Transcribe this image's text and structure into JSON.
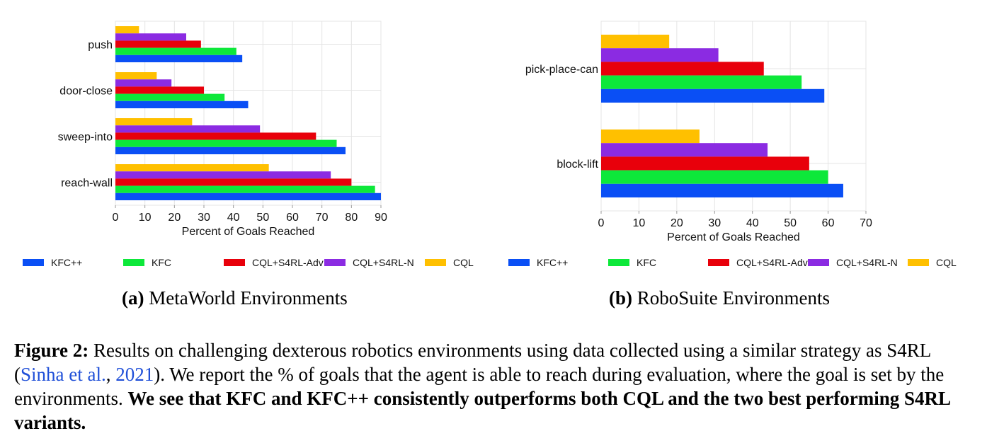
{
  "figure": {
    "subcaption_a": {
      "label": "(a)",
      "text": "MetaWorld Environments"
    },
    "subcaption_b": {
      "label": "(b)",
      "text": "RoboSuite Environments"
    },
    "caption": {
      "label": "Figure 2:",
      "text_1": "Results on challenging dexterous robotics environments using data collected using a similar strategy as S4RL (",
      "cite_author": "Sinha et al.",
      "cite_sep": ", ",
      "cite_year": "2021",
      "text_2": "). We report the % of goals that the agent is able to reach during evaluation, where the goal is set by the environments. ",
      "bold_text": "We see that KFC and KFC++ consistently outperforms both CQL and the two best performing S4RL variants."
    }
  },
  "chart_data": [
    {
      "type": "bar",
      "orientation": "horizontal",
      "categories": [
        "push",
        "door-close",
        "sweep-into",
        "reach-wall"
      ],
      "series": [
        {
          "name": "KFC++",
          "color": "#0a4ff5",
          "values": [
            43,
            45,
            78,
            90
          ]
        },
        {
          "name": "KFC",
          "color": "#0de83a",
          "values": [
            41,
            37,
            75,
            88
          ]
        },
        {
          "name": "CQL+S4RL-Adv",
          "color": "#e8000b",
          "values": [
            29,
            30,
            68,
            80
          ]
        },
        {
          "name": "CQL+S4RL-N",
          "color": "#8b2be2",
          "values": [
            24,
            19,
            49,
            73
          ]
        },
        {
          "name": "CQL",
          "color": "#ffc000",
          "values": [
            8,
            14,
            26,
            52
          ]
        }
      ],
      "xlabel": "Percent of Goals Reached",
      "ylabel": "",
      "xlim": [
        0,
        90
      ],
      "xticks": [
        0,
        10,
        20,
        30,
        40,
        50,
        60,
        70,
        80,
        90
      ],
      "grid": true,
      "legend": "bottom"
    },
    {
      "type": "bar",
      "orientation": "horizontal",
      "categories": [
        "pick-place-can",
        "block-lift"
      ],
      "series": [
        {
          "name": "KFC++",
          "color": "#0a4ff5",
          "values": [
            59,
            64
          ]
        },
        {
          "name": "KFC",
          "color": "#0de83a",
          "values": [
            53,
            60
          ]
        },
        {
          "name": "CQL+S4RL-Adv",
          "color": "#e8000b",
          "values": [
            43,
            55
          ]
        },
        {
          "name": "CQL+S4RL-N",
          "color": "#8b2be2",
          "values": [
            31,
            44
          ]
        },
        {
          "name": "CQL",
          "color": "#ffc000",
          "values": [
            18,
            26
          ]
        }
      ],
      "xlabel": "Percent of Goals Reached",
      "ylabel": "",
      "xlim": [
        0,
        70
      ],
      "xticks": [
        0,
        10,
        20,
        30,
        40,
        50,
        60,
        70
      ],
      "grid": true,
      "legend": "bottom"
    }
  ]
}
